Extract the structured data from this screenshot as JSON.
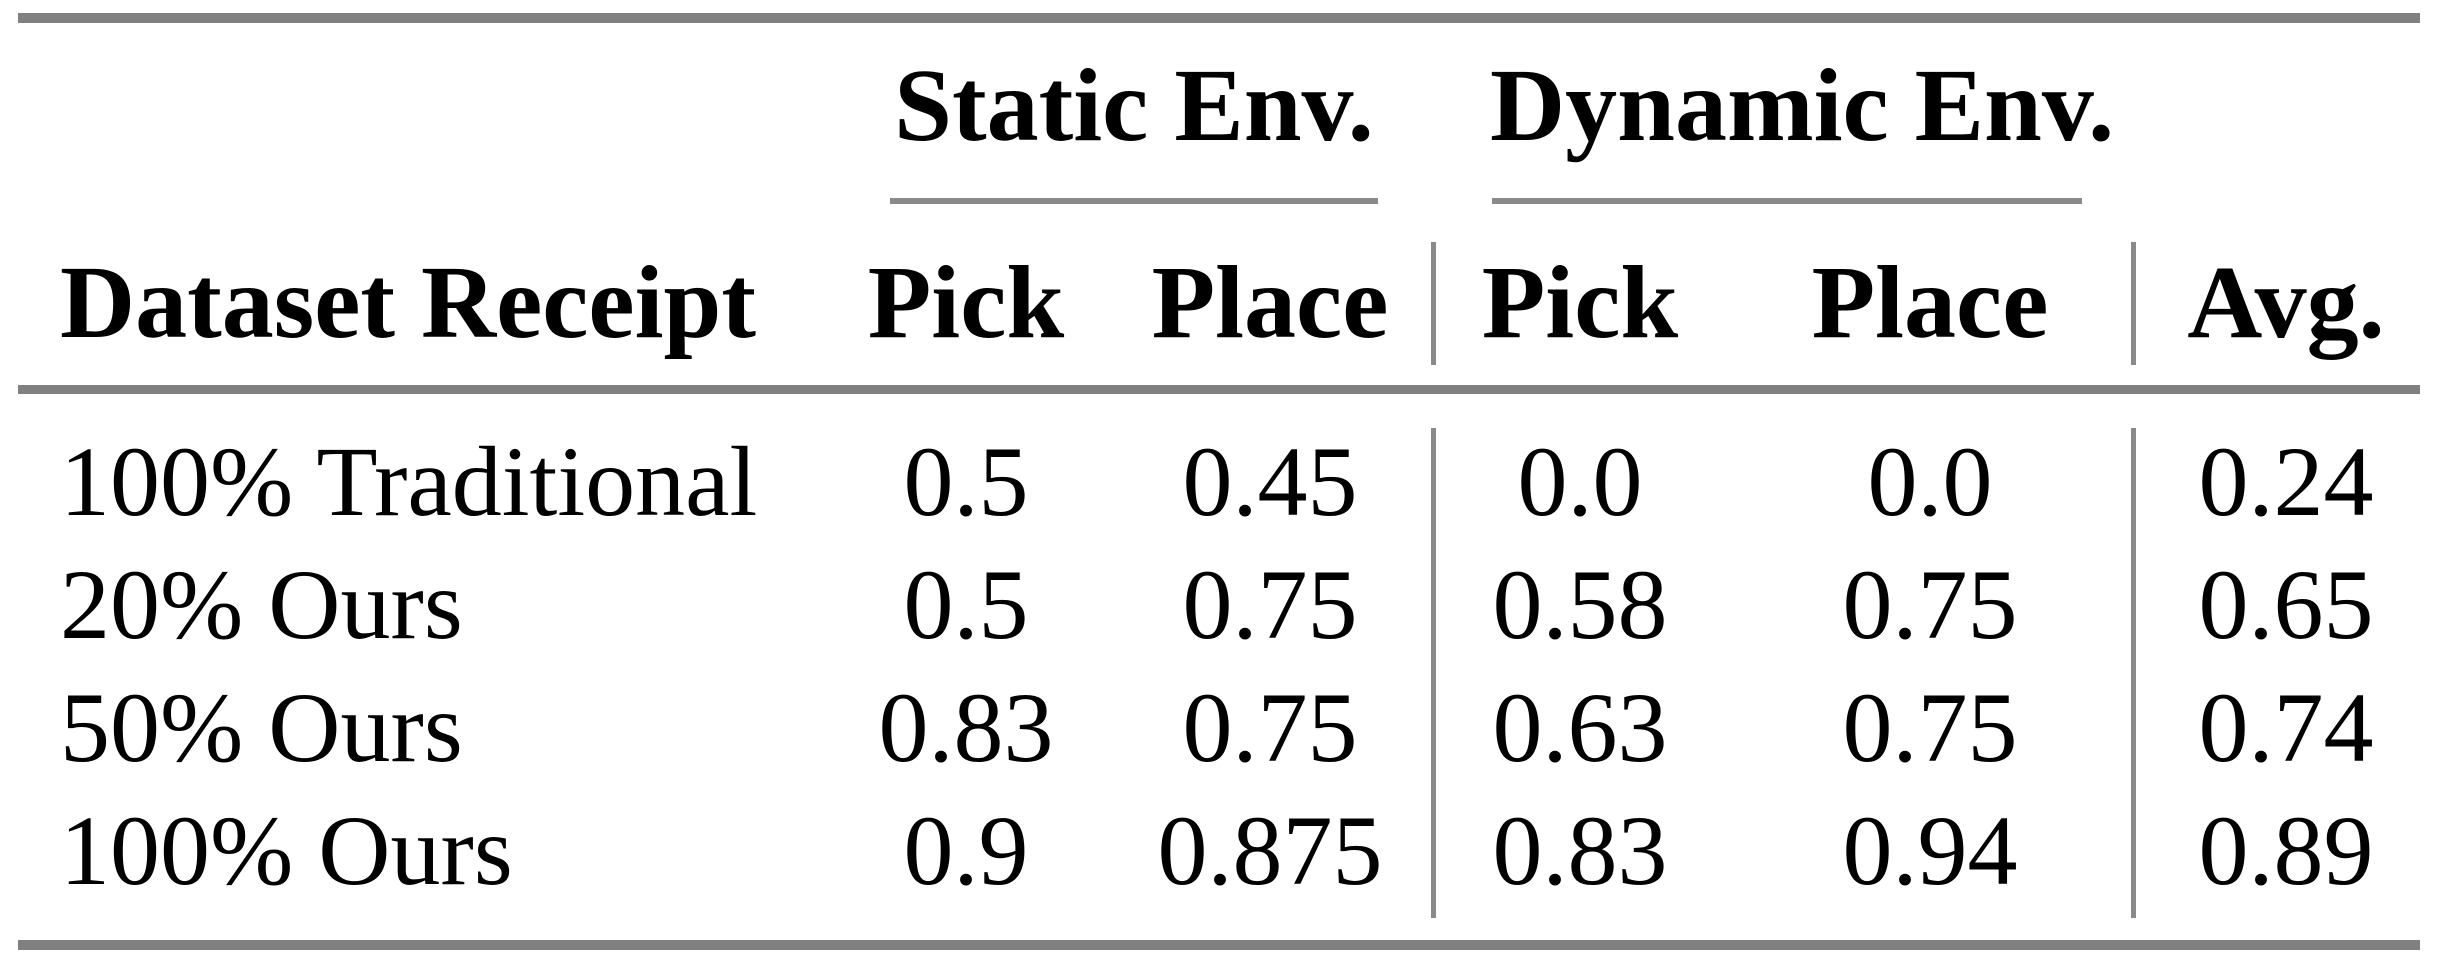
{
  "table": {
    "column_groups": {
      "static": "Static Env.",
      "dynamic": "Dynamic Env."
    },
    "headers": {
      "row_label": "Dataset Receipt",
      "static_pick": "Pick",
      "static_place": "Place",
      "dynamic_pick": "Pick",
      "dynamic_place": "Place",
      "avg": "Avg."
    },
    "rows": [
      {
        "label": "100% Traditional",
        "static_pick": "0.5",
        "static_place": "0.45",
        "dynamic_pick": "0.0",
        "dynamic_place": "0.0",
        "avg": "0.24"
      },
      {
        "label": "20% Ours",
        "static_pick": "0.5",
        "static_place": "0.75",
        "dynamic_pick": "0.58",
        "dynamic_place": "0.75",
        "avg": "0.65"
      },
      {
        "label": "50% Ours",
        "static_pick": "0.83",
        "static_place": "0.75",
        "dynamic_pick": "0.63",
        "dynamic_place": "0.75",
        "avg": "0.74"
      },
      {
        "label": "100% Ours",
        "static_pick": "0.9",
        "static_place": "0.875",
        "dynamic_pick": "0.83",
        "dynamic_place": "0.94",
        "avg": "0.89"
      }
    ]
  },
  "colors": {
    "rule_thick": "#808080",
    "rule_thin": "#8a8a8a",
    "text": "#000000",
    "background": "#ffffff"
  }
}
